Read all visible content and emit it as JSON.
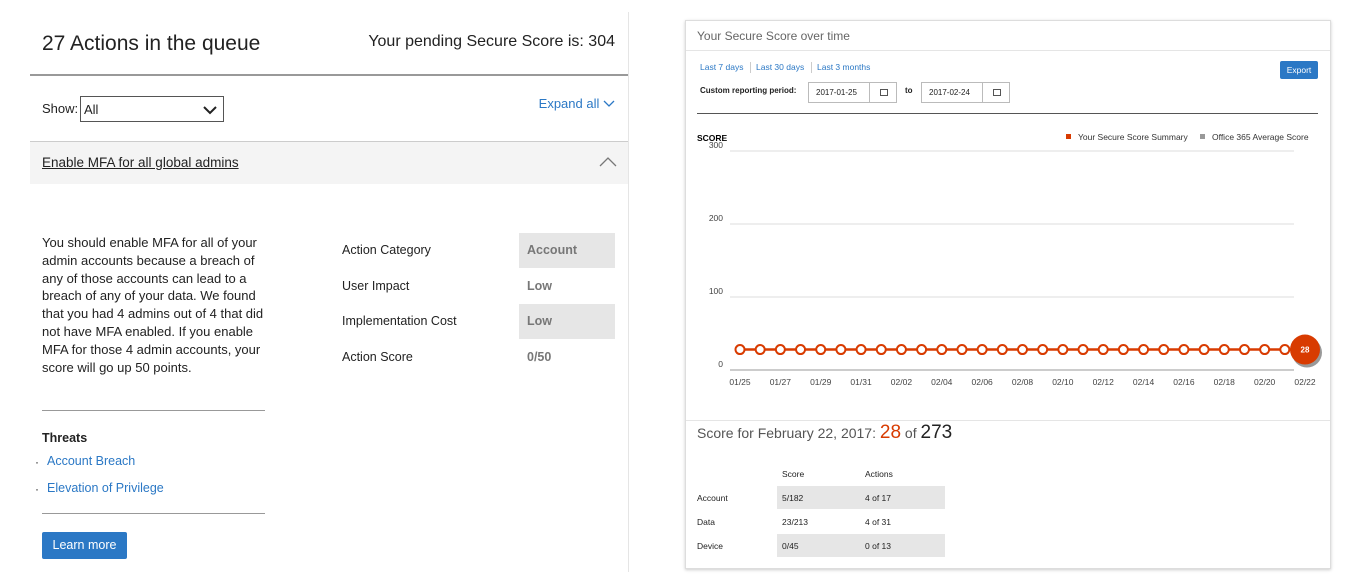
{
  "left": {
    "title": "27 Actions in the queue",
    "pending": "Your pending Secure Score is: 304",
    "show_label": "Show:",
    "show_value": "All",
    "expand": "Expand all",
    "action": {
      "title": "Enable MFA for all global admins",
      "description": "You should enable MFA for all of your admin accounts because a breach of any of those accounts can lead to a breach of any of your data. We found that you had 4 admins out of 4 that did not have MFA enabled. If you enable MFA for those 4 admin accounts, your score will go up 50 points.",
      "details": [
        {
          "label": "Action Category",
          "value": "Account"
        },
        {
          "label": "User Impact",
          "value": "Low"
        },
        {
          "label": "Implementation Cost",
          "value": "Low"
        },
        {
          "label": "Action Score",
          "value": "0/50"
        }
      ],
      "threats_heading": "Threats",
      "threats": [
        "Account Breach",
        "Elevation of Privilege"
      ],
      "button": "Learn more"
    }
  },
  "right": {
    "title": "Your Secure Score over time",
    "ranges": [
      "Last 7 days",
      "Last 30 days",
      "Last 3 months"
    ],
    "export": "Export",
    "custom_label": "Custom reporting period:",
    "from": "2017-01-25",
    "to_label": "to",
    "to": "2017-02-24",
    "summary": {
      "prefix": "Score for February 22, 2017:",
      "score": "28",
      "of": "of",
      "total": "273"
    },
    "table": {
      "headers": [
        "Score",
        "Actions"
      ],
      "rows": [
        [
          "Account",
          "5/182",
          "4 of 17"
        ],
        [
          "Data",
          "23/213",
          "4 of 31"
        ],
        [
          "Device",
          "0/45",
          "0 of 13"
        ]
      ]
    }
  },
  "chart_data": {
    "type": "line",
    "y_label": "SCORE",
    "categories": [
      "01/25",
      null,
      "01/27",
      null,
      "01/29",
      null,
      "01/31",
      null,
      "02/02",
      null,
      "02/04",
      null,
      "02/06",
      null,
      "02/08",
      null,
      "02/10",
      null,
      "02/12",
      null,
      "02/14",
      null,
      "02/16",
      null,
      "02/18",
      null,
      "02/20",
      null,
      "02/22"
    ],
    "series": [
      {
        "name": "Your Secure Score Summary",
        "color": "#d83b01",
        "values": [
          28,
          28,
          28,
          28,
          28,
          28,
          28,
          28,
          28,
          28,
          28,
          28,
          28,
          28,
          28,
          28,
          28,
          28,
          28,
          28,
          28,
          28,
          28,
          28,
          28,
          28,
          28,
          28,
          28
        ]
      },
      {
        "name": "Office 365 Average Score",
        "color": "#999999",
        "values": [
          null,
          null,
          null,
          null,
          null,
          null,
          null,
          null,
          null,
          null,
          null,
          null,
          null,
          null,
          null,
          null,
          null,
          null,
          null,
          null,
          null,
          null,
          null,
          null,
          null,
          null,
          null,
          null,
          null
        ]
      }
    ],
    "ylim": [
      0,
      300
    ],
    "yticks": [
      0,
      100,
      200,
      300
    ],
    "grid": true
  }
}
